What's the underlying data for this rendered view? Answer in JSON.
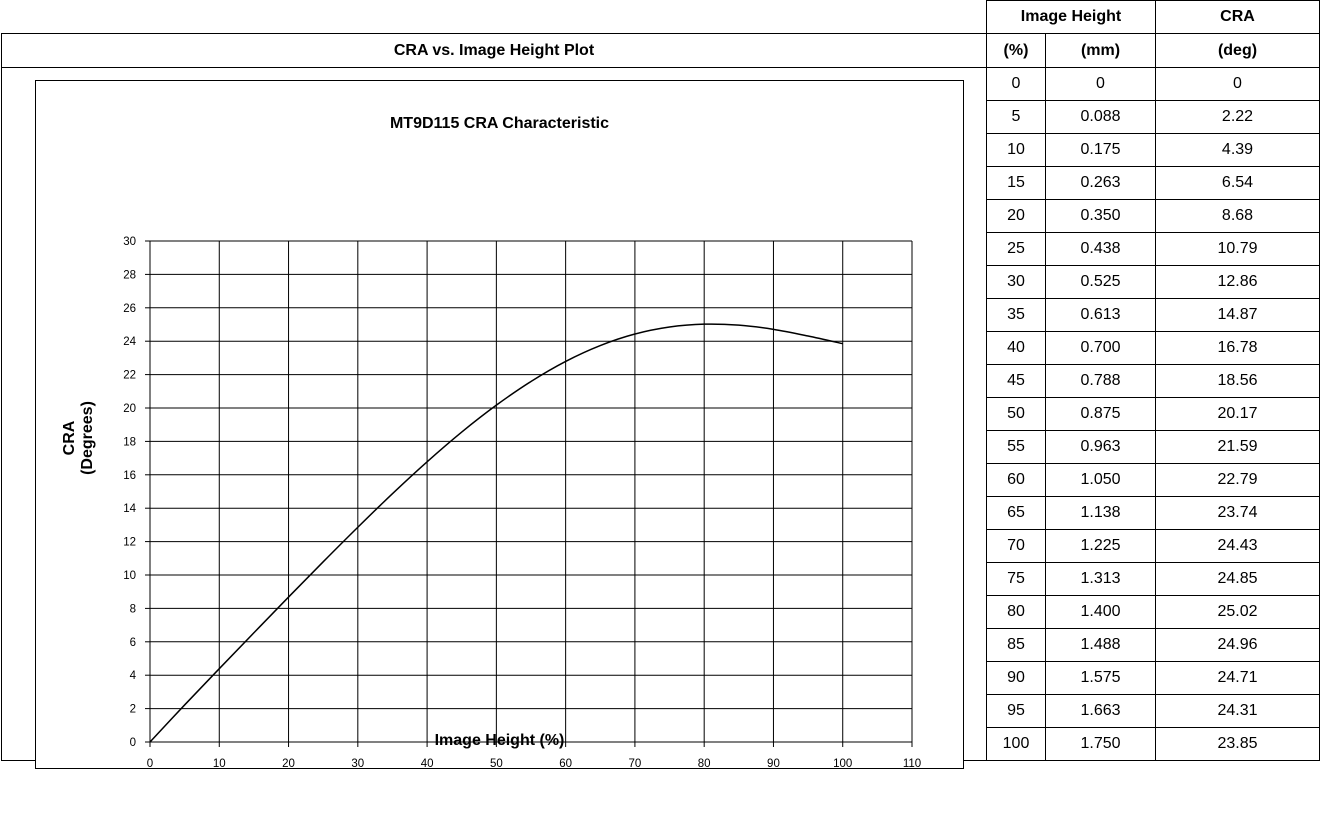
{
  "plot_section_title": "CRA vs. Image Height Plot",
  "table": {
    "header_image_height": "Image Height",
    "header_cra": "CRA",
    "unit_percent": "(%)",
    "unit_mm": "(mm)",
    "unit_deg": "(deg)",
    "rows": [
      [
        "0",
        "0",
        "0"
      ],
      [
        "5",
        "0.088",
        "2.22"
      ],
      [
        "10",
        "0.175",
        "4.39"
      ],
      [
        "15",
        "0.263",
        "6.54"
      ],
      [
        "20",
        "0.350",
        "8.68"
      ],
      [
        "25",
        "0.438",
        "10.79"
      ],
      [
        "30",
        "0.525",
        "12.86"
      ],
      [
        "35",
        "0.613",
        "14.87"
      ],
      [
        "40",
        "0.700",
        "16.78"
      ],
      [
        "45",
        "0.788",
        "18.56"
      ],
      [
        "50",
        "0.875",
        "20.17"
      ],
      [
        "55",
        "0.963",
        "21.59"
      ],
      [
        "60",
        "1.050",
        "22.79"
      ],
      [
        "65",
        "1.138",
        "23.74"
      ],
      [
        "70",
        "1.225",
        "24.43"
      ],
      [
        "75",
        "1.313",
        "24.85"
      ],
      [
        "80",
        "1.400",
        "25.02"
      ],
      [
        "85",
        "1.488",
        "24.96"
      ],
      [
        "90",
        "1.575",
        "24.71"
      ],
      [
        "95",
        "1.663",
        "24.31"
      ],
      [
        "100",
        "1.750",
        "23.85"
      ]
    ]
  },
  "chart_data": {
    "type": "line",
    "title": "MT9D115 CRA Characteristic",
    "xlabel": "Image Height (%)",
    "ylabel": "CRA (Degrees)",
    "xlim": [
      0,
      110
    ],
    "ylim": [
      0,
      30
    ],
    "x_ticks": [
      0,
      10,
      20,
      30,
      40,
      50,
      60,
      70,
      80,
      90,
      100,
      110
    ],
    "y_ticks": [
      0,
      2,
      4,
      6,
      8,
      10,
      12,
      14,
      16,
      18,
      20,
      22,
      24,
      26,
      28,
      30
    ],
    "grid": true,
    "x": [
      0,
      5,
      10,
      15,
      20,
      25,
      30,
      35,
      40,
      45,
      50,
      55,
      60,
      65,
      70,
      75,
      80,
      85,
      90,
      95,
      100
    ],
    "series": [
      {
        "values": [
          0,
          2.22,
          4.39,
          6.54,
          8.68,
          10.79,
          12.86,
          14.87,
          16.78,
          18.56,
          20.17,
          21.59,
          22.79,
          23.74,
          24.43,
          24.85,
          25.02,
          24.96,
          24.71,
          24.31,
          23.85
        ]
      }
    ],
    "line_color": "#000000"
  }
}
